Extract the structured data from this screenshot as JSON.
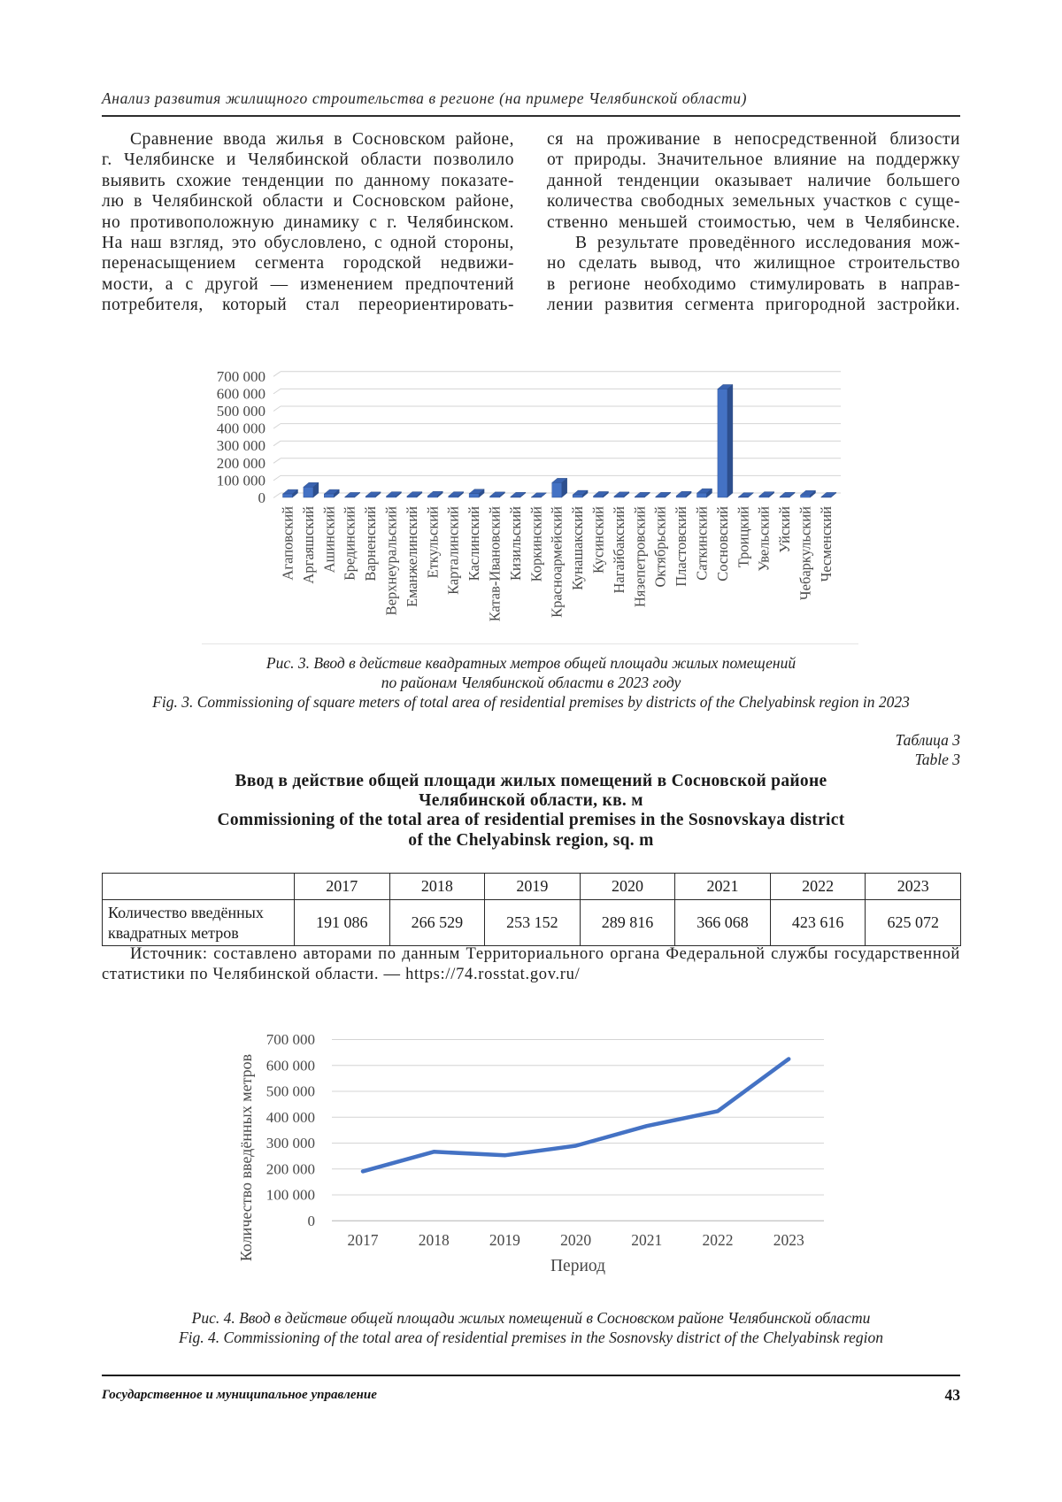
{
  "header": {
    "running_title": "Анализ развития жилищного строительства в регионе (на примере Челябинской области)"
  },
  "body": {
    "left_column_lines": [
      {
        "t": "Сравнение ввода жилья в Сосновском районе,",
        "ind": true,
        "j": true
      },
      {
        "t": "г. Челябинске и Челябинской области позволило",
        "j": true
      },
      {
        "t": "выявить схожие тенденции по данному показате-",
        "j": true
      },
      {
        "t": "лю в Челябинской области и Сосновском районе,",
        "j": true
      },
      {
        "t": "но противоположную динамику с г. Челябинском.",
        "j": true
      },
      {
        "t": "На наш взгляд, это обусловлено, с одной стороны,",
        "j": true
      },
      {
        "t": "перенасыщением сегмента городской недвижи-",
        "j": true
      },
      {
        "t": "мости, а с другой — изменением предпочтений",
        "j": true
      },
      {
        "t": "потребителя, который стал переориентировать-",
        "j": true
      }
    ],
    "right_column_lines": [
      {
        "t": "ся на проживание в непосредственной близости",
        "j": true
      },
      {
        "t": "от природы. Значительное влияние на поддержку",
        "j": true
      },
      {
        "t": "данной тенденции оказывает наличие большего",
        "j": true
      },
      {
        "t": "количества свободных земельных участков с суще-",
        "j": true
      },
      {
        "t": "ственно меньшей стоимостью, чем в Челябинске.",
        "j": true
      },
      {
        "t": "В результате проведённого исследования мож-",
        "ind": true,
        "j": true
      },
      {
        "t": "но сделать вывод, что жилищное строительство",
        "j": true
      },
      {
        "t": "в регионе необходимо стимулировать в направ-",
        "j": true
      },
      {
        "t": "лении развития сегмента пригородной застройки.",
        "j": true
      }
    ]
  },
  "figure3": {
    "caption_lines": [
      "Рис. 3. Ввод в действие квадратных метров общей площади жилых помещений",
      "по районам Челябинской области в 2023 году",
      "Fig. 3. Commissioning of square meters of total area of residential premises by districts of the Chelyabinsk region in 2023"
    ]
  },
  "table3": {
    "label_ru": "Таблица 3",
    "label_en": "Table 3",
    "title_lines": [
      "Ввод в действие общей площади жилых помещений в Сосновской районе",
      "Челябинской области, кв. м",
      "Commissioning of the total area of residential premises in the Sosnovskaya district",
      "of the Chelyabinsk region, sq. m"
    ],
    "columns": [
      "2017",
      "2018",
      "2019",
      "2020",
      "2021",
      "2022",
      "2023"
    ],
    "row_label": "Количество введённых квадратных метров",
    "values": [
      "191 086",
      "266 529",
      "253 152",
      "289 816",
      "366 068",
      "423 616",
      "625 072"
    ],
    "source_lines": [
      {
        "t": "Источник: составлено авторами по данным Территориального органа Федеральной службы государственной",
        "ind": true,
        "j": true
      },
      {
        "t": "статистики по Челябинской области. — https://74.rosstat.gov.ru/",
        "j": false
      }
    ]
  },
  "figure4": {
    "caption_lines": [
      "Рис. 4. Ввод в действие общей площади жилых помещений в Сосновском районе Челябинской области",
      "Fig. 4. Commissioning of the total area of residential premises in the Sosnovsky district of the Chelyabinsk region"
    ]
  },
  "footer": {
    "journal": "Государственное и муниципальное управление",
    "page": "43"
  },
  "chart_data": [
    {
      "type": "bar",
      "style": "3d-column",
      "title": "",
      "categories": [
        "Агаповский",
        "Аргаяшский",
        "Ашинский",
        "Брединский",
        "Варненский",
        "Верхнеуральский",
        "Еманжелинский",
        "Еткульский",
        "Карталинский",
        "Каслинский",
        "Катав-Ивановский",
        "Кизильский",
        "Коркинский",
        "Красноармейский",
        "Кунашакский",
        "Кусинский",
        "Нагайбакский",
        "Нязепетровский",
        "Октябрьский",
        "Пластовский",
        "Саткинский",
        "Сосновский",
        "Троицкий",
        "Увельский",
        "Уйский",
        "Чебаркульский",
        "Чесменский"
      ],
      "values": [
        20000,
        60000,
        20000,
        3000,
        6000,
        7000,
        7000,
        9000,
        7000,
        22000,
        6000,
        4000,
        1000,
        85000,
        15000,
        8000,
        6000,
        4000,
        4000,
        9000,
        25000,
        625072,
        2000,
        7000,
        4000,
        14000,
        3000
      ],
      "xlabel": "",
      "ylabel": "",
      "ylim": [
        0,
        700000
      ],
      "ytick_step": 100000,
      "ytick_labels": [
        "0",
        "100 000",
        "200 000",
        "300 000",
        "400 000",
        "500 000",
        "600 000",
        "700 000"
      ],
      "grid": true,
      "legend": "none",
      "bar_color": "#4472c4"
    },
    {
      "type": "line",
      "title": "",
      "x": [
        "2017",
        "2018",
        "2019",
        "2020",
        "2021",
        "2022",
        "2023"
      ],
      "values": [
        191086,
        266529,
        253152,
        289816,
        366068,
        423616,
        625072
      ],
      "xlabel": "Период",
      "ylabel": "Количество введённых метров",
      "ylim": [
        0,
        700000
      ],
      "ytick_step": 100000,
      "ytick_labels": [
        "0",
        "100 000",
        "200 000",
        "300 000",
        "400 000",
        "500 000",
        "600 000",
        "700 000"
      ],
      "grid": true,
      "legend": "none",
      "line_color": "#4472c4"
    }
  ]
}
